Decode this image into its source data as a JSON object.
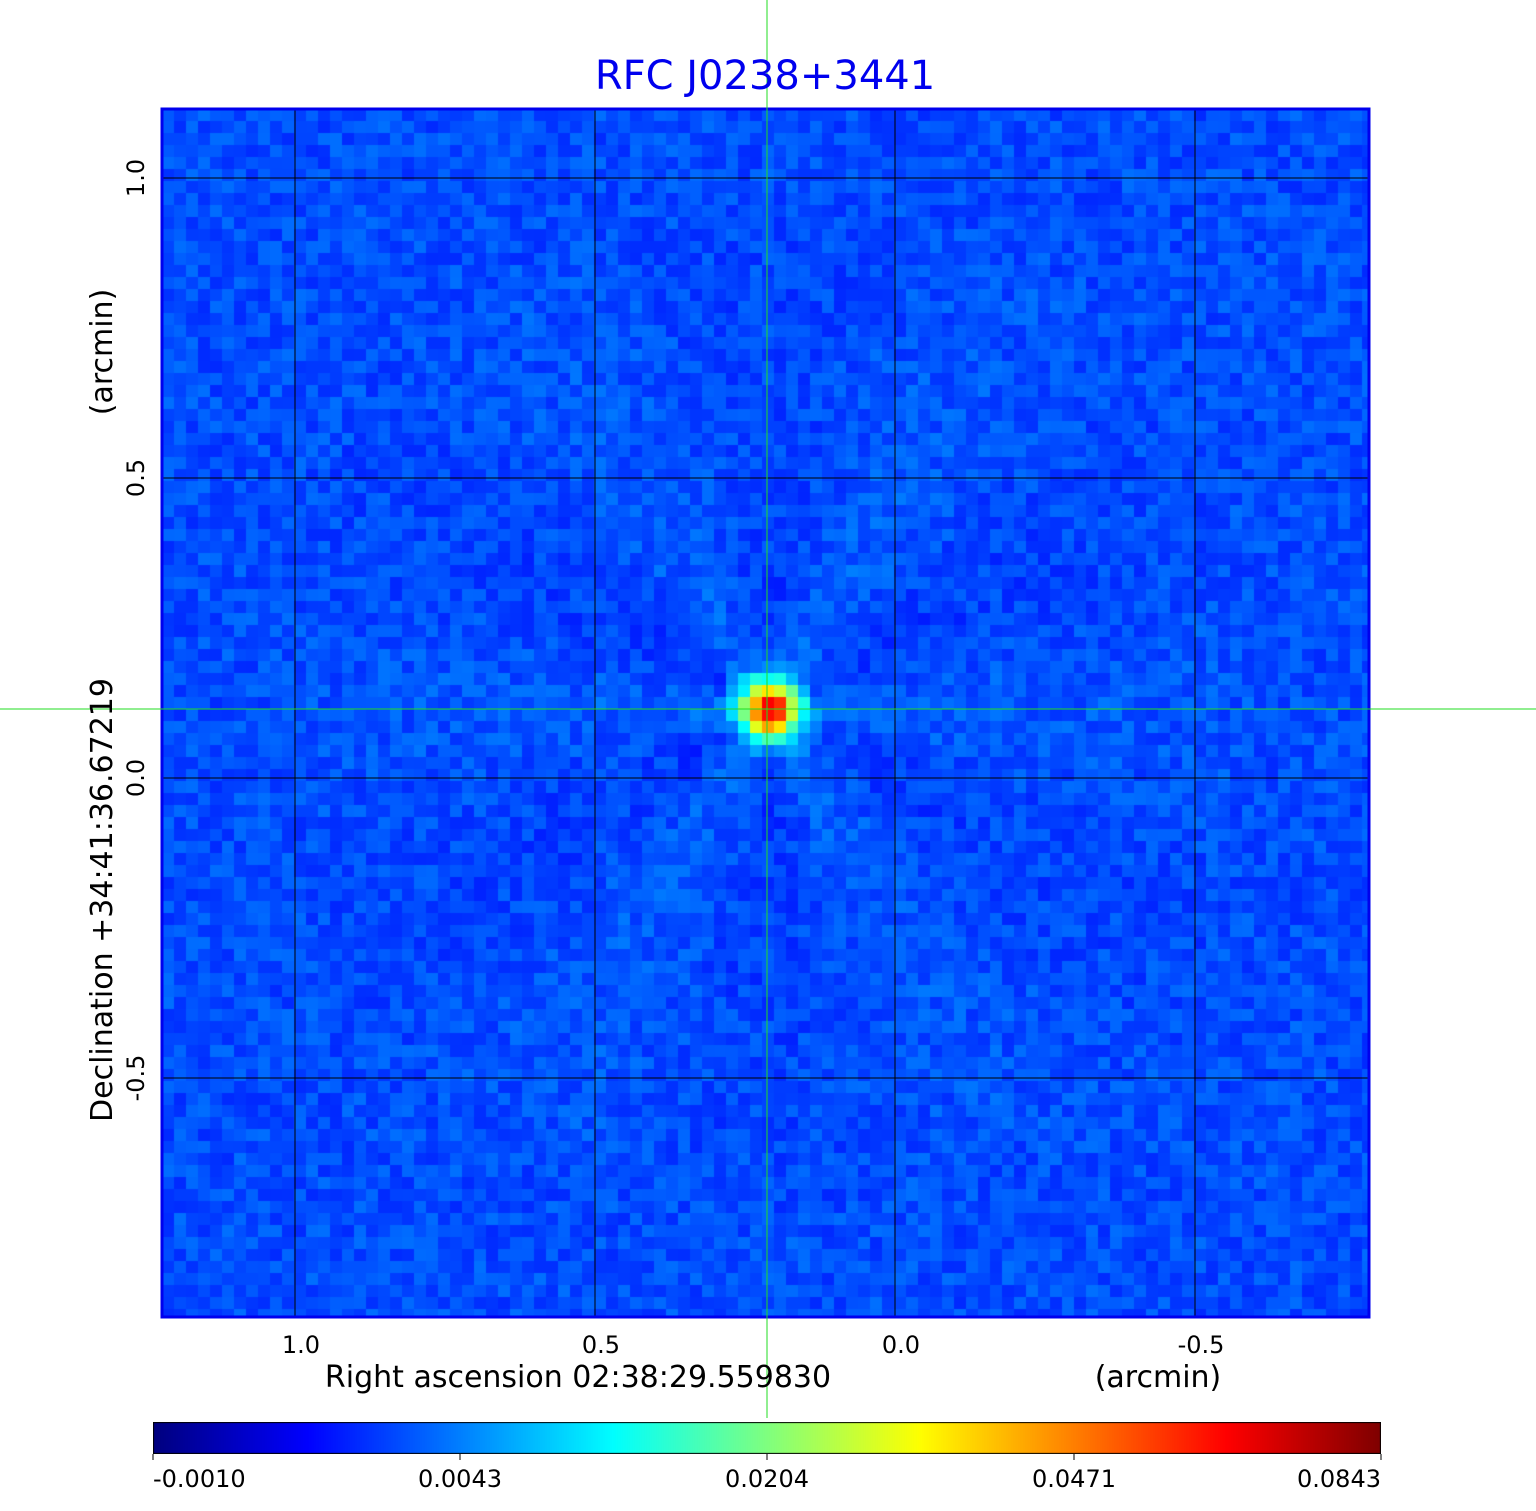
{
  "chart_data": {
    "type": "heatmap",
    "title": "RFC J0238+3441",
    "xlabel": "Right ascension  02:38:29.559830",
    "xunit": "(arcmin)",
    "ylabel": "Declination  +34:41:36.67219",
    "yunit": "(arcmin)",
    "x_ticks": [
      "1.0",
      "0.5",
      "0.0",
      "-0.5"
    ],
    "x_tick_values": [
      1.0,
      0.5,
      0.0,
      -0.5
    ],
    "y_ticks": [
      "1.0",
      "0.5",
      "0.0",
      "-0.5"
    ],
    "y_tick_values": [
      1.0,
      0.5,
      0.0,
      -0.5
    ],
    "xlim": [
      1.22,
      -0.79
    ],
    "ylim": [
      -0.9,
      1.11
    ],
    "grid": true,
    "crosshair": {
      "x": 0.213,
      "y": 0.115
    },
    "source_peak": {
      "x": 0.21,
      "y": 0.115,
      "value": 0.0843
    },
    "colormap": "jet",
    "colorbar": {
      "ticks": [
        "-0.0010",
        "0.0043",
        "0.0204",
        "0.0471",
        "0.0843"
      ],
      "range": [
        -0.001,
        0.0843
      ],
      "placement": "bottom"
    },
    "title_color": "#0000ee",
    "frame_color": "#0000ee",
    "crosshair_color": "#00dd00"
  }
}
